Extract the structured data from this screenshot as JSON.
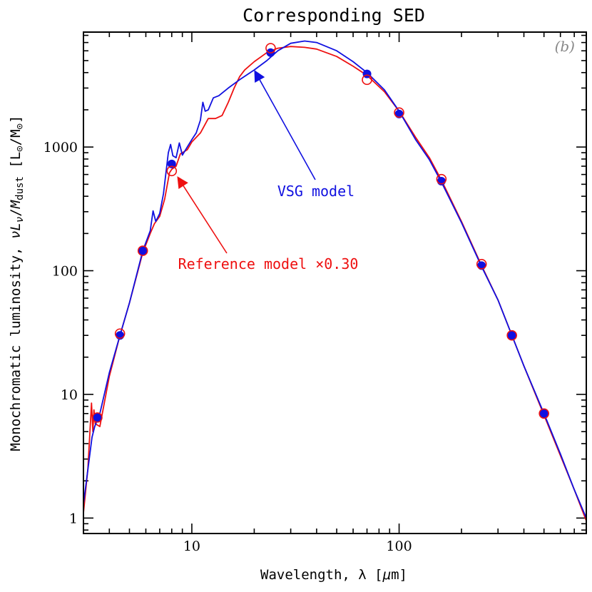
{
  "chart_data": {
    "type": "line",
    "title": "Corresponding SED",
    "panel_label": "(b)",
    "xlabel": "Wavelength, λ [μm]",
    "ylabel": "Monochromatic luminosity, νLν/Mdust [L⊙/M⊙]",
    "xscale": "log",
    "yscale": "log",
    "xlim": [
      3,
      800
    ],
    "ylim": [
      0.75,
      8500
    ],
    "x_ticks": [
      10,
      100
    ],
    "x_tick_labels": [
      "10",
      "100"
    ],
    "y_ticks": [
      1,
      10,
      100,
      1000
    ],
    "y_tick_labels": [
      "1",
      "10",
      "100",
      "1000"
    ],
    "series": [
      {
        "name": "VSG model",
        "color": "#1010e0",
        "curve": [
          [
            3.0,
            1.3
          ],
          [
            3.2,
            3.0
          ],
          [
            3.3,
            4.5
          ],
          [
            3.4,
            5.5
          ],
          [
            3.6,
            7.0
          ],
          [
            4.0,
            15
          ],
          [
            4.5,
            30
          ],
          [
            5.0,
            55
          ],
          [
            5.8,
            145
          ],
          [
            6.3,
            210
          ],
          [
            6.5,
            305
          ],
          [
            6.7,
            250
          ],
          [
            7.0,
            290
          ],
          [
            7.3,
            420
          ],
          [
            7.7,
            900
          ],
          [
            7.9,
            1050
          ],
          [
            8.1,
            850
          ],
          [
            8.4,
            820
          ],
          [
            8.7,
            1080
          ],
          [
            9.0,
            860
          ],
          [
            9.5,
            1000
          ],
          [
            10,
            1150
          ],
          [
            10.5,
            1300
          ],
          [
            11.0,
            1650
          ],
          [
            11.3,
            2300
          ],
          [
            11.6,
            1950
          ],
          [
            12.0,
            2000
          ],
          [
            12.7,
            2500
          ],
          [
            13.5,
            2600
          ],
          [
            15,
            3000
          ],
          [
            17,
            3500
          ],
          [
            20,
            4200
          ],
          [
            23,
            5000
          ],
          [
            26,
            6000
          ],
          [
            30,
            6900
          ],
          [
            35,
            7200
          ],
          [
            40,
            7000
          ],
          [
            50,
            6000
          ],
          [
            60,
            4900
          ],
          [
            70,
            4000
          ],
          [
            85,
            2900
          ],
          [
            100,
            1950
          ],
          [
            120,
            1150
          ],
          [
            140,
            790
          ],
          [
            160,
            520
          ],
          [
            200,
            245
          ],
          [
            250,
            108
          ],
          [
            300,
            58
          ],
          [
            350,
            30
          ],
          [
            400,
            17
          ],
          [
            500,
            7.0
          ],
          [
            600,
            3.3
          ],
          [
            700,
            1.7
          ],
          [
            800,
            1.0
          ]
        ],
        "points": [
          [
            3.5,
            6.5
          ],
          [
            4.5,
            30
          ],
          [
            5.8,
            145
          ],
          [
            8.0,
            730
          ],
          [
            24,
            5800
          ],
          [
            70,
            3900
          ],
          [
            100,
            1850
          ],
          [
            160,
            530
          ],
          [
            250,
            110
          ],
          [
            350,
            30
          ],
          [
            500,
            7.0
          ]
        ]
      },
      {
        "name": "Reference model ×0.30",
        "color": "#ee1010",
        "curve": [
          [
            3.0,
            1.1
          ],
          [
            3.15,
            2.5
          ],
          [
            3.28,
            8.5
          ],
          [
            3.33,
            5.0
          ],
          [
            3.37,
            7.5
          ],
          [
            3.42,
            5.8
          ],
          [
            3.6,
            5.5
          ],
          [
            4.0,
            14
          ],
          [
            4.5,
            30
          ],
          [
            5.0,
            55
          ],
          [
            5.8,
            140
          ],
          [
            6.3,
            200
          ],
          [
            6.6,
            240
          ],
          [
            7.0,
            275
          ],
          [
            7.4,
            380
          ],
          [
            7.8,
            620
          ],
          [
            8.0,
            660
          ],
          [
            8.4,
            700
          ],
          [
            8.8,
            880
          ],
          [
            9.5,
            950
          ],
          [
            10,
            1100
          ],
          [
            11,
            1300
          ],
          [
            12,
            1700
          ],
          [
            13,
            1700
          ],
          [
            14,
            1800
          ],
          [
            15,
            2300
          ],
          [
            16,
            3000
          ],
          [
            17,
            3700
          ],
          [
            18,
            4200
          ],
          [
            20,
            4900
          ],
          [
            23,
            5800
          ],
          [
            26,
            6300
          ],
          [
            30,
            6500
          ],
          [
            35,
            6400
          ],
          [
            40,
            6200
          ],
          [
            50,
            5400
          ],
          [
            60,
            4500
          ],
          [
            70,
            3800
          ],
          [
            85,
            2800
          ],
          [
            100,
            1950
          ],
          [
            120,
            1200
          ],
          [
            140,
            820
          ],
          [
            160,
            540
          ],
          [
            200,
            250
          ],
          [
            250,
            110
          ],
          [
            300,
            58
          ],
          [
            350,
            30
          ],
          [
            400,
            17
          ],
          [
            500,
            6.8
          ],
          [
            600,
            3.2
          ],
          [
            700,
            1.7
          ],
          [
            800,
            0.95
          ]
        ],
        "points": [
          [
            3.5,
            6.5
          ],
          [
            4.5,
            31
          ],
          [
            5.8,
            145
          ],
          [
            8.0,
            640
          ],
          [
            24,
            6300
          ],
          [
            70,
            3500
          ],
          [
            100,
            1900
          ],
          [
            160,
            550
          ],
          [
            250,
            113
          ],
          [
            350,
            30
          ],
          [
            500,
            7.0
          ]
        ]
      }
    ],
    "annotations": [
      {
        "text": "VSG model",
        "arrow_tip": [
          20,
          4200
        ]
      },
      {
        "text": "Reference model ×0.30",
        "arrow_tip": [
          8.5,
          580
        ]
      }
    ]
  }
}
